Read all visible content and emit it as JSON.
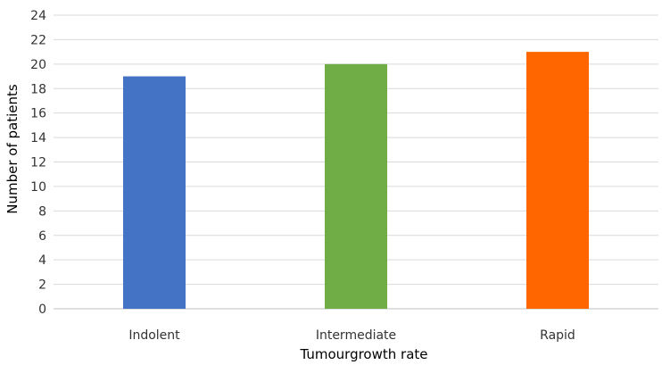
{
  "chart_data": {
    "type": "bar",
    "categories": [
      "Indolent",
      "Intermediate",
      "Rapid"
    ],
    "values": [
      19,
      20,
      21
    ],
    "bar_colors": [
      "#4472c4",
      "#70ad47",
      "#ff6600"
    ],
    "xlabel": "Tumourgrowth rate",
    "ylabel": "Number of patients",
    "ylim": [
      0,
      24
    ],
    "yticks": [
      0,
      2,
      4,
      6,
      8,
      10,
      12,
      14,
      16,
      18,
      20,
      22,
      24
    ],
    "grid": true,
    "gridline_color": "#d9d9d9",
    "legend": "none"
  }
}
